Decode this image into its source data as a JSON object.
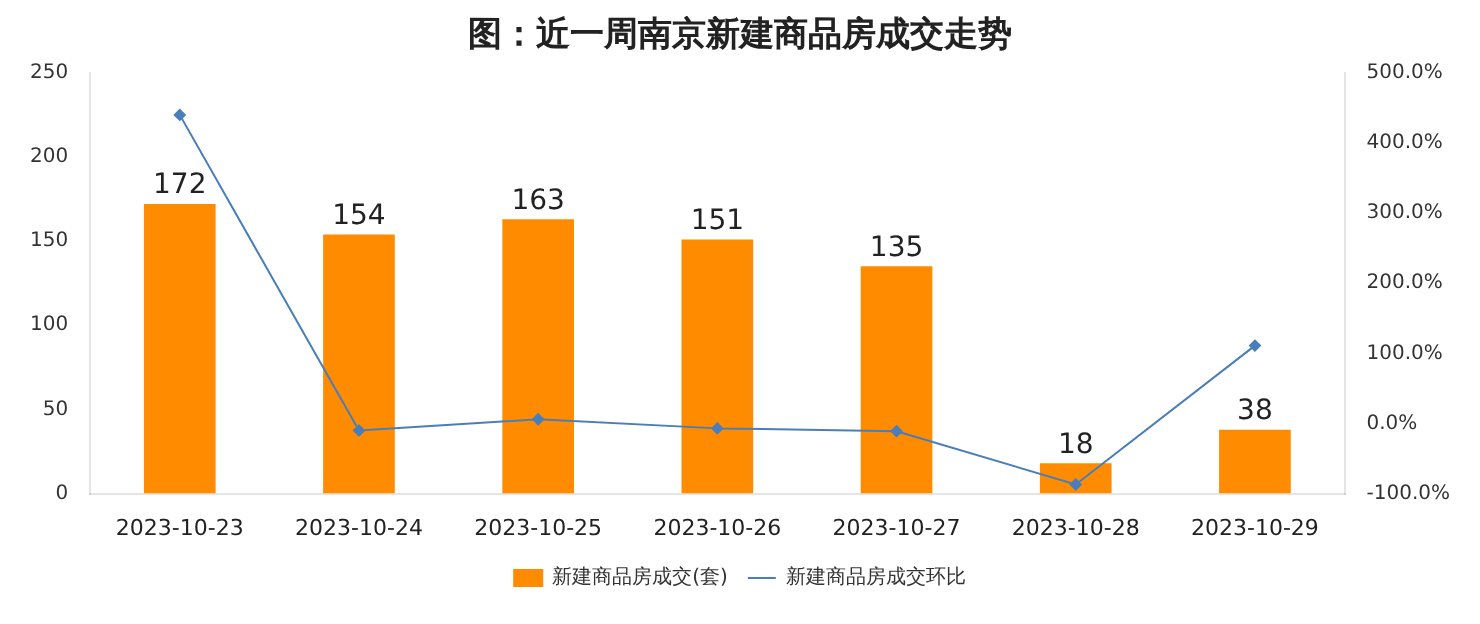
{
  "chart_data": {
    "type": "bar",
    "title": "图：近一周南京新建商品房成交走势",
    "categories": [
      "2023-10-23",
      "2023-10-24",
      "2023-10-25",
      "2023-10-26",
      "2023-10-27",
      "2023-10-28",
      "2023-10-29"
    ],
    "series": [
      {
        "name": "新建商品房成交(套)",
        "color": "#ff8c00",
        "values": [
          172,
          154,
          163,
          151,
          135,
          18,
          38
        ],
        "value_labels": [
          "172",
          "154",
          "163",
          "151",
          "135",
          "18",
          "38"
        ]
      },
      {
        "name": "新建商品房成交环比",
        "type": "line",
        "axis": "y2",
        "color": "#4a7ebb",
        "marker": "diamond",
        "values": [
          440,
          -10,
          6,
          -7,
          -11,
          -87,
          111
        ]
      }
    ],
    "ylim": [
      0,
      250
    ],
    "yticks": [
      0,
      50,
      100,
      150,
      200,
      250
    ],
    "y2lim": [
      -100,
      500
    ],
    "y2ticks": [
      {
        "value": -100,
        "label": "-100.0%"
      },
      {
        "value": 0,
        "label": "0.0%"
      },
      {
        "value": 100,
        "label": "100.0%"
      },
      {
        "value": 200,
        "label": "200.0%"
      },
      {
        "value": 300,
        "label": "300.0%"
      },
      {
        "value": 400,
        "label": "400.0%"
      },
      {
        "value": 500,
        "label": "500.0%"
      }
    ],
    "legend": "bottom",
    "grid": false
  }
}
